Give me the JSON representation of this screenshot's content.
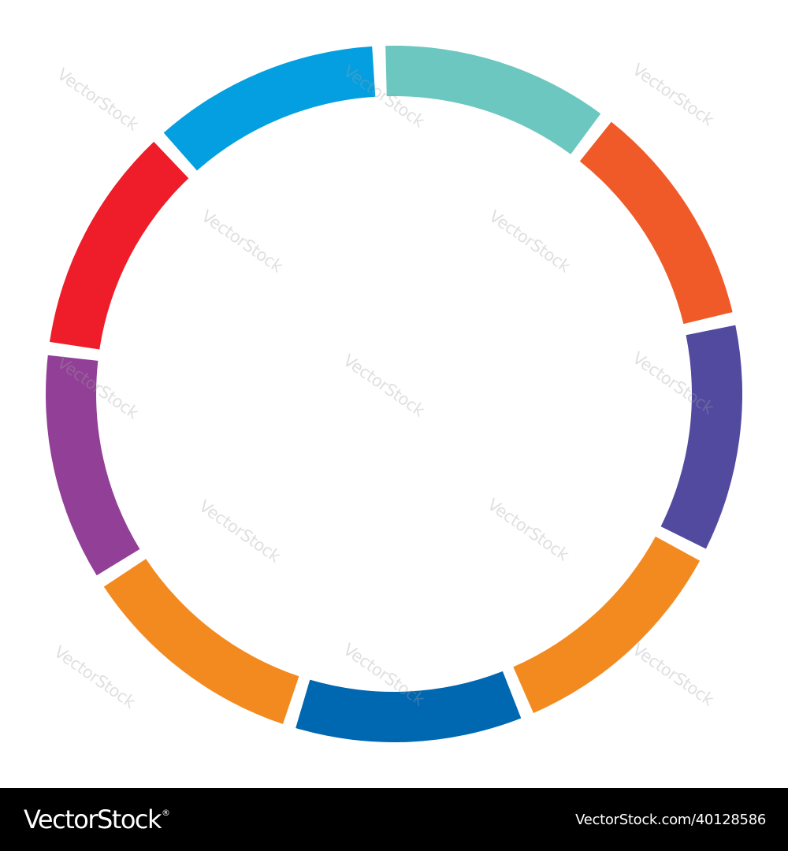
{
  "diagram": {
    "segments": [
      {
        "name": "teal",
        "color": "#6bc7bf"
      },
      {
        "name": "orange-red",
        "color": "#f05a28"
      },
      {
        "name": "indigo",
        "color": "#524a9f"
      },
      {
        "name": "orange",
        "color": "#f38a20"
      },
      {
        "name": "blue",
        "color": "#0067b1"
      },
      {
        "name": "orange",
        "color": "#f38a20"
      },
      {
        "name": "purple",
        "color": "#923f97"
      },
      {
        "name": "red",
        "color": "#ef1c29"
      },
      {
        "name": "sky-blue",
        "color": "#039fe0"
      }
    ]
  },
  "watermark": {
    "text": "VectorStock"
  },
  "footer": {
    "logo": "VectorStock",
    "registered_mark": "®",
    "image_id": "VectorStock.com/40128586"
  }
}
